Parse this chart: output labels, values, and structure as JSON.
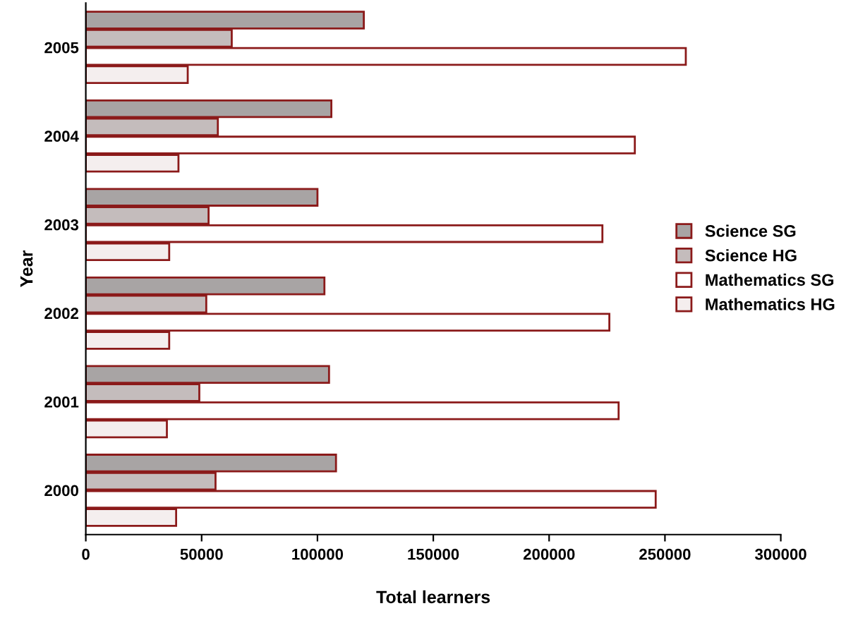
{
  "chart_data": {
    "type": "bar",
    "orientation": "horizontal",
    "xlabel": "Total learners",
    "ylabel": "Year",
    "categories": [
      "2005",
      "2004",
      "2003",
      "2002",
      "2001",
      "2000"
    ],
    "series": [
      {
        "name": "Science SG",
        "color": "#a8a4a4",
        "values": [
          120000,
          106000,
          100000,
          103000,
          105000,
          108000
        ]
      },
      {
        "name": "Science HG",
        "color": "#c4bcbc",
        "values": [
          63000,
          57000,
          53000,
          52000,
          49000,
          56000
        ]
      },
      {
        "name": "Mathematics SG",
        "color": "#ffffff",
        "values": [
          259000,
          237000,
          223000,
          226000,
          230000,
          246000
        ]
      },
      {
        "name": "Mathematics HG",
        "color": "#f4eeee",
        "values": [
          44000,
          40000,
          36000,
          36000,
          35000,
          39000
        ]
      }
    ],
    "xlim": [
      0,
      300000
    ],
    "xticks": [
      0,
      50000,
      100000,
      150000,
      200000,
      250000,
      300000
    ],
    "grid": false,
    "legend": "right"
  }
}
